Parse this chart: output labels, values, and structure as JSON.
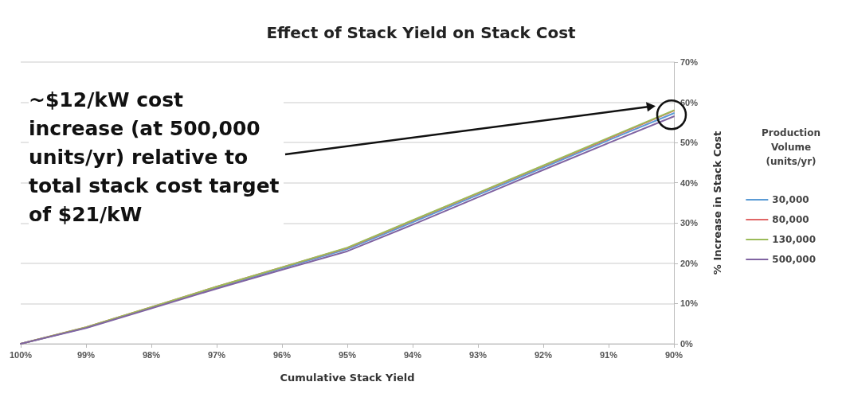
{
  "chart_data": {
    "type": "line",
    "title": "Effect of Stack Yield on Stack Cost",
    "xlabel": "Cumulative Stack Yield",
    "ylabel": "% Increase in Stack Cost",
    "legend_title": "Production Volume (units/yr)",
    "x": [
      100,
      99,
      98,
      97,
      96,
      95,
      94,
      93,
      92,
      91,
      90
    ],
    "xlim": [
      100,
      90
    ],
    "xticks": [
      {
        "value": 100,
        "label": "100%"
      },
      {
        "value": 99,
        "label": "99%"
      },
      {
        "value": 98,
        "label": "98%"
      },
      {
        "value": 97,
        "label": "97%"
      },
      {
        "value": 96,
        "label": "96%"
      },
      {
        "value": 95,
        "label": "95%"
      },
      {
        "value": 94,
        "label": "94%"
      },
      {
        "value": 93,
        "label": "93%"
      },
      {
        "value": 92,
        "label": "92%"
      },
      {
        "value": 91,
        "label": "91%"
      },
      {
        "value": 90,
        "label": "90%"
      }
    ],
    "ylim": [
      0,
      70
    ],
    "yticks": [
      {
        "value": 0,
        "label": "0%"
      },
      {
        "value": 10,
        "label": "10%"
      },
      {
        "value": 20,
        "label": "20%"
      },
      {
        "value": 30,
        "label": "30%"
      },
      {
        "value": 40,
        "label": "40%"
      },
      {
        "value": 50,
        "label": "50%"
      },
      {
        "value": 60,
        "label": "60%"
      },
      {
        "value": 70,
        "label": "70%"
      }
    ],
    "series": [
      {
        "name": "30,000",
        "color": "#5b9bd5",
        "values": [
          0,
          4,
          9,
          14,
          18.8,
          23.5,
          30.2,
          37,
          43.8,
          50.6,
          57.3
        ]
      },
      {
        "name": "80,000",
        "color": "#e06666",
        "values": [
          0,
          4.1,
          9.1,
          14.2,
          19,
          23.8,
          30.6,
          37.4,
          44.2,
          51,
          57.9
        ]
      },
      {
        "name": "130,000",
        "color": "#9bbb59",
        "values": [
          0,
          4.1,
          9.1,
          14.2,
          19,
          23.9,
          30.7,
          37.5,
          44.3,
          51.2,
          58
        ]
      },
      {
        "name": "500,000",
        "color": "#8064a2",
        "values": [
          0,
          3.9,
          8.8,
          13.7,
          18.4,
          23,
          29.6,
          36.4,
          43.2,
          49.9,
          56.5
        ]
      }
    ],
    "annotations": [
      "~$12/kW cost increase (at 500,000 units/yr) relative to total stack cost target of $21/kW"
    ],
    "grid": "y",
    "legend": "right",
    "marker": "none",
    "line_style": "solid"
  }
}
